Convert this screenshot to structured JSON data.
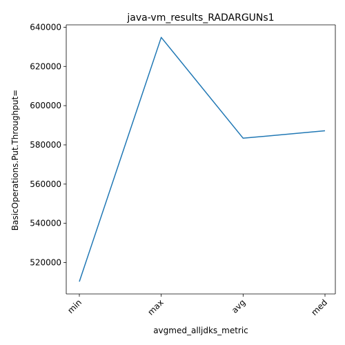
{
  "chart_data": {
    "type": "line",
    "title": "java-vm_results_RADARGUNs1",
    "xlabel": "avgmed_alljdks_metric",
    "ylabel": "BasicOperations.Put.Throughput=",
    "categories": [
      "min",
      "max",
      "avg",
      "med"
    ],
    "series": [
      {
        "values": [
          510300,
          634800,
          583400,
          587200
        ]
      }
    ],
    "ylim": [
      504000,
      641200
    ],
    "yticks": [
      520000,
      540000,
      560000,
      580000,
      600000,
      620000,
      640000
    ],
    "ytick_labels": [
      "520000",
      "540000",
      "560000",
      "580000",
      "600000",
      "620000",
      "640000"
    ],
    "grid": false,
    "legend": "none",
    "line_color": "#1f77b4"
  }
}
